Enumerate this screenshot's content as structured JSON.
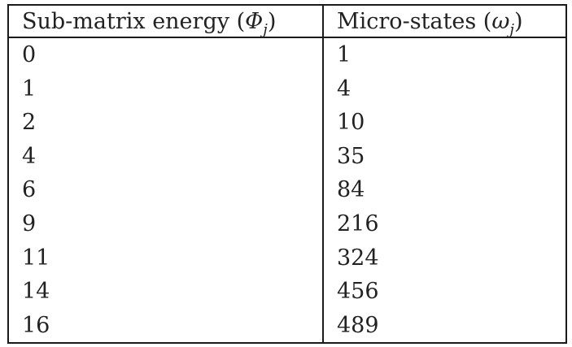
{
  "table": {
    "headers": [
      {
        "label": "Sub-matrix energy",
        "symbol": "Φ",
        "subscript": "j"
      },
      {
        "label": "Micro-states",
        "symbol": "ω",
        "subscript": "j"
      }
    ],
    "rows": [
      [
        "0",
        "1"
      ],
      [
        "1",
        "4"
      ],
      [
        "2",
        "10"
      ],
      [
        "4",
        "35"
      ],
      [
        "6",
        "84"
      ],
      [
        "9",
        "216"
      ],
      [
        "11",
        "324"
      ],
      [
        "14",
        "456"
      ],
      [
        "16",
        "489"
      ]
    ]
  }
}
